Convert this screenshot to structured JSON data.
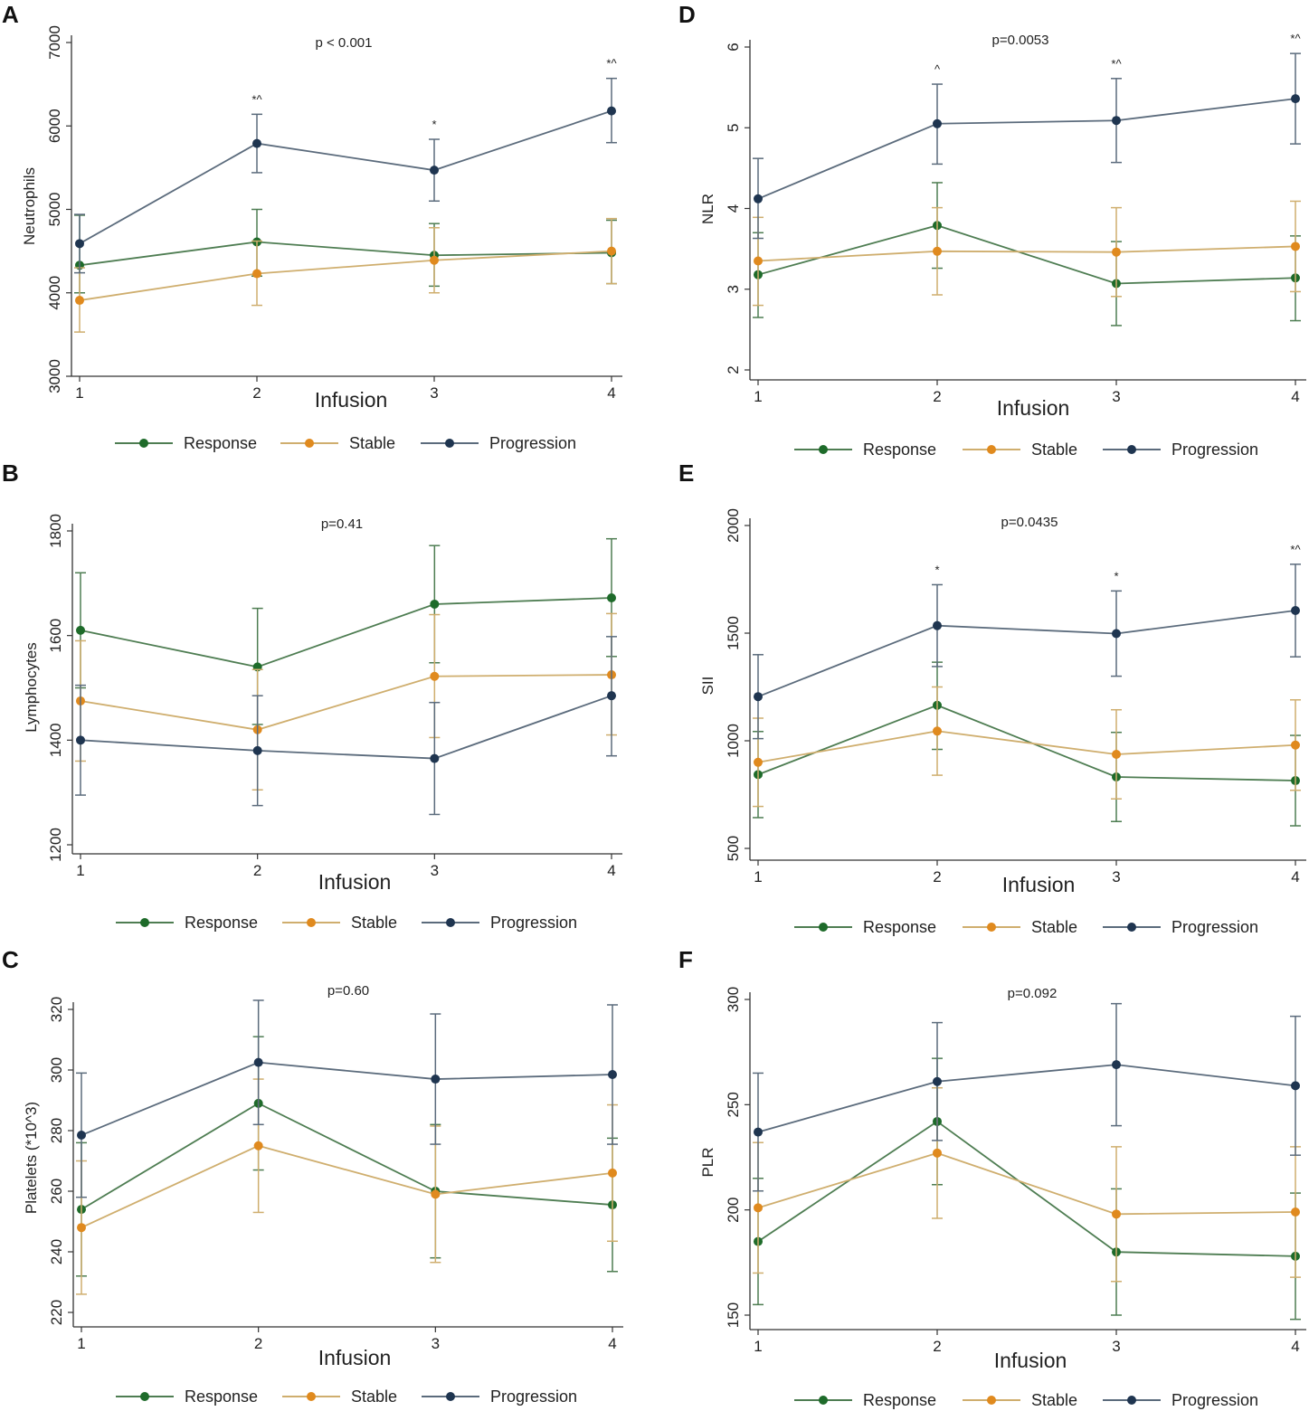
{
  "colors": {
    "Response": "#1e6b2a",
    "Stable": "#e08a1e",
    "Progression": "#1f3550",
    "Response_line": "#4e7d52",
    "Stable_line": "#cfae6e",
    "Progression_line": "#5b6b7c",
    "axis": "#333333"
  },
  "chart_data": [
    {
      "id": "A",
      "type": "line",
      "letter": "A",
      "pvalue": "p < 0.001",
      "xlabel": "Infusion",
      "ylabel": "Neutrophils",
      "x": [
        1,
        2,
        3,
        4
      ],
      "ylim": [
        3000,
        7000
      ],
      "yticks": [
        3000,
        4000,
        5000,
        6000,
        7000
      ],
      "legend": [
        "Response",
        "Stable",
        "Progression"
      ],
      "series": [
        {
          "name": "Response",
          "values": [
            4330,
            4610,
            4450,
            4480
          ],
          "lower": [
            4000,
            4200,
            4080,
            4110
          ],
          "upper": [
            4930,
            5000,
            4830,
            4870
          ]
        },
        {
          "name": "Stable",
          "values": [
            3910,
            4230,
            4390,
            4500
          ],
          "lower": [
            3530,
            3850,
            4000,
            4110
          ],
          "upper": [
            4300,
            4620,
            4780,
            4890
          ]
        },
        {
          "name": "Progression",
          "values": [
            4590,
            5790,
            5470,
            6180
          ],
          "lower": [
            4240,
            5440,
            5100,
            5800
          ],
          "upper": [
            4940,
            6140,
            5840,
            6570
          ]
        }
      ],
      "annotations": [
        {
          "x": 2,
          "text": "*^"
        },
        {
          "x": 3,
          "text": "*"
        },
        {
          "x": 4,
          "text": "*^"
        }
      ]
    },
    {
      "id": "D",
      "type": "line",
      "letter": "D",
      "pvalue": "p=0.0053",
      "xlabel": "Infusion",
      "ylabel": "NLR",
      "x": [
        1,
        2,
        3,
        4
      ],
      "ylim": [
        2,
        6
      ],
      "yticks": [
        2,
        3,
        4,
        5,
        6
      ],
      "legend": [
        "Response",
        "Stable",
        "Progression"
      ],
      "series": [
        {
          "name": "Response",
          "values": [
            3.18,
            3.79,
            3.07,
            3.14
          ],
          "lower": [
            2.65,
            3.26,
            2.55,
            2.61
          ],
          "upper": [
            3.7,
            4.32,
            3.59,
            3.66
          ]
        },
        {
          "name": "Stable",
          "values": [
            3.35,
            3.47,
            3.46,
            3.53
          ],
          "lower": [
            2.8,
            2.93,
            2.91,
            2.97
          ],
          "upper": [
            3.89,
            4.01,
            4.01,
            4.09
          ]
        },
        {
          "name": "Progression",
          "values": [
            4.12,
            5.05,
            5.09,
            5.36
          ],
          "lower": [
            3.63,
            4.55,
            4.57,
            4.8
          ],
          "upper": [
            4.62,
            5.54,
            5.61,
            5.92
          ]
        }
      ],
      "annotations": [
        {
          "x": 2,
          "text": "^"
        },
        {
          "x": 3,
          "text": "*^"
        },
        {
          "x": 4,
          "text": "*^"
        }
      ]
    },
    {
      "id": "B",
      "type": "line",
      "letter": "B",
      "pvalue": "p=0.41",
      "xlabel": "Infusion",
      "ylabel": "Lymphocytes",
      "x": [
        1,
        2,
        3,
        4
      ],
      "ylim": [
        1200,
        1800
      ],
      "yticks": [
        1200,
        1400,
        1600,
        1800
      ],
      "legend": [
        "Response",
        "Stable",
        "Progression"
      ],
      "series": [
        {
          "name": "Response",
          "values": [
            1610,
            1540,
            1660,
            1672
          ],
          "lower": [
            1500,
            1430,
            1548,
            1560
          ],
          "upper": [
            1720,
            1652,
            1772,
            1785
          ]
        },
        {
          "name": "Stable",
          "values": [
            1475,
            1420,
            1522,
            1525
          ],
          "lower": [
            1360,
            1305,
            1405,
            1410
          ],
          "upper": [
            1590,
            1535,
            1640,
            1642
          ]
        },
        {
          "name": "Progression",
          "values": [
            1400,
            1380,
            1365,
            1485
          ],
          "lower": [
            1295,
            1275,
            1258,
            1370
          ],
          "upper": [
            1505,
            1485,
            1472,
            1598
          ]
        }
      ],
      "annotations": []
    },
    {
      "id": "E",
      "type": "line",
      "letter": "E",
      "pvalue": "p=0.0435",
      "xlabel": "Infusion",
      "ylabel": "SII",
      "x": [
        1,
        2,
        3,
        4
      ],
      "ylim": [
        500,
        2000
      ],
      "yticks": [
        500,
        1000,
        1500,
        2000
      ],
      "legend": [
        "Response",
        "Stable",
        "Progression"
      ],
      "series": [
        {
          "name": "Response",
          "values": [
            843,
            1165,
            832,
            815
          ],
          "lower": [
            643,
            960,
            625,
            605
          ],
          "upper": [
            1043,
            1365,
            1039,
            1025
          ]
        },
        {
          "name": "Stable",
          "values": [
            900,
            1045,
            937,
            980
          ],
          "lower": [
            695,
            840,
            730,
            770
          ],
          "upper": [
            1105,
            1250,
            1144,
            1190
          ]
        },
        {
          "name": "Progression",
          "values": [
            1205,
            1535,
            1498,
            1605
          ],
          "lower": [
            1010,
            1345,
            1300,
            1390
          ],
          "upper": [
            1400,
            1725,
            1696,
            1820
          ]
        }
      ],
      "annotations": [
        {
          "x": 2,
          "text": "*"
        },
        {
          "x": 3,
          "text": "*"
        },
        {
          "x": 4,
          "text": "*^"
        }
      ]
    },
    {
      "id": "C",
      "type": "line",
      "letter": "C",
      "pvalue": "p=0.60",
      "xlabel": "Infusion",
      "ylabel": "Platelets (*10^3)",
      "x": [
        1,
        2,
        3,
        4
      ],
      "ylim": [
        220,
        320
      ],
      "yticks": [
        220,
        240,
        260,
        280,
        300,
        320
      ],
      "legend": [
        "Response",
        "Stable",
        "Progression"
      ],
      "series": [
        {
          "name": "Response",
          "values": [
            254,
            289,
            260,
            255.5
          ],
          "lower": [
            232,
            267,
            238,
            233.5
          ],
          "upper": [
            276,
            311,
            282,
            277.5
          ]
        },
        {
          "name": "Stable",
          "values": [
            248,
            275,
            259,
            266
          ],
          "lower": [
            226,
            253,
            236.5,
            243.5
          ],
          "upper": [
            270,
            297,
            281.5,
            288.5
          ]
        },
        {
          "name": "Progression",
          "values": [
            278.5,
            302.5,
            297,
            298.5
          ],
          "lower": [
            258,
            282,
            275.5,
            275.5
          ],
          "upper": [
            299,
            323,
            318.5,
            321.5
          ]
        }
      ],
      "annotations": []
    },
    {
      "id": "F",
      "type": "line",
      "letter": "F",
      "pvalue": "p=0.092",
      "xlabel": "Infusion",
      "ylabel": "PLR",
      "x": [
        1,
        2,
        3,
        4
      ],
      "ylim": [
        150,
        300
      ],
      "yticks": [
        150,
        200,
        250,
        300
      ],
      "legend": [
        "Response",
        "Stable",
        "Progression"
      ],
      "series": [
        {
          "name": "Response",
          "values": [
            185,
            242,
            180,
            178
          ],
          "lower": [
            155,
            212,
            150,
            148
          ],
          "upper": [
            215,
            272,
            210,
            208
          ]
        },
        {
          "name": "Stable",
          "values": [
            201,
            227,
            198,
            199
          ],
          "lower": [
            170,
            196,
            166,
            168
          ],
          "upper": [
            232,
            258,
            230,
            230
          ]
        },
        {
          "name": "Progression",
          "values": [
            237,
            261,
            269,
            259
          ],
          "lower": [
            209,
            233,
            240,
            226
          ],
          "upper": [
            265,
            289,
            298,
            292
          ]
        }
      ],
      "annotations": []
    }
  ]
}
